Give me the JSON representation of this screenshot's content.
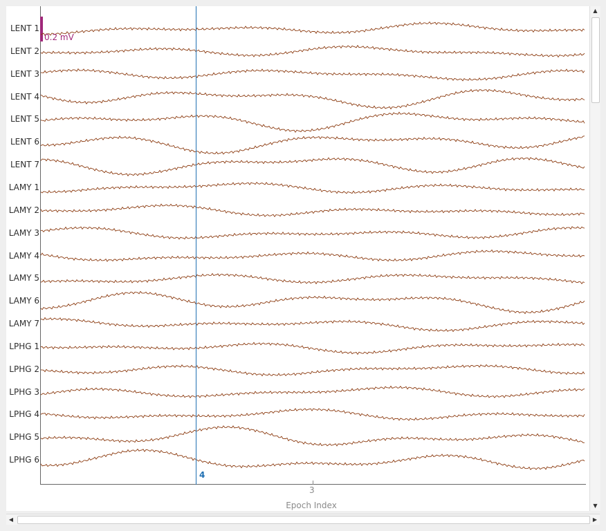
{
  "viewer": {
    "scale_label": "0.2 mV",
    "marker_label": "4",
    "x_tick_label": "3",
    "x_axis_title": "Epoch Index",
    "trace_color": "#8b3a0f",
    "marker_color": "#1f6fb2",
    "scale_bar_color": "#a0287a"
  },
  "channels": [
    {
      "label": "LENT 1"
    },
    {
      "label": "LENT 2"
    },
    {
      "label": "LENT 3"
    },
    {
      "label": "LENT 4"
    },
    {
      "label": "LENT 5"
    },
    {
      "label": "LENT 6"
    },
    {
      "label": "LENT 7"
    },
    {
      "label": "LAMY 1"
    },
    {
      "label": "LAMY 2"
    },
    {
      "label": "LAMY 3"
    },
    {
      "label": "LAMY 4"
    },
    {
      "label": "LAMY 5"
    },
    {
      "label": "LAMY 6"
    },
    {
      "label": "LAMY 7"
    },
    {
      "label": "LPHG 1"
    },
    {
      "label": "LPHG 2"
    },
    {
      "label": "LPHG 3"
    },
    {
      "label": "LPHG 4"
    },
    {
      "label": "LPHG 5"
    },
    {
      "label": "LPHG 6"
    }
  ],
  "scrollbars": {
    "up_icon": "arrow-up-icon",
    "down_icon": "arrow-down-icon",
    "left_icon": "arrow-left-icon",
    "right_icon": "arrow-right-icon"
  }
}
